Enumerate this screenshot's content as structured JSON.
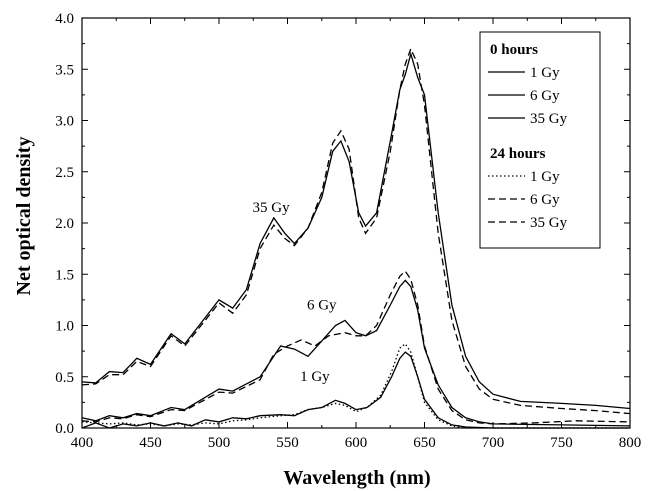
{
  "chart_data": {
    "type": "line",
    "xlabel": "Wavelength (nm)",
    "ylabel": "Net optical density",
    "xlim": [
      400,
      800
    ],
    "ylim": [
      0.0,
      4.0
    ],
    "x_ticks": [
      "400",
      "450",
      "500",
      "550",
      "600",
      "650",
      "700",
      "750",
      "800"
    ],
    "y_ticks": [
      "0.0",
      "0.5",
      "1.0",
      "1.5",
      "2.0",
      "2.5",
      "3.0",
      "3.5",
      "4.0"
    ],
    "grid": false,
    "legend_position": "top-right",
    "legend_groups": [
      {
        "title": "0 hours",
        "entries": [
          {
            "label": "1 Gy",
            "style": "solid"
          },
          {
            "label": "6 Gy",
            "style": "solid"
          },
          {
            "label": "35 Gy",
            "style": "solid"
          }
        ]
      },
      {
        "title": "24 hours",
        "entries": [
          {
            "label": "1 Gy",
            "style": "dotted"
          },
          {
            "label": "6 Gy",
            "style": "dashed"
          },
          {
            "label": "35 Gy",
            "style": "dashed"
          }
        ]
      }
    ],
    "annotations": [
      {
        "text": "35 Gy",
        "x": 538,
        "y": 2.05
      },
      {
        "text": "6 Gy",
        "x": 575,
        "y": 1.1
      },
      {
        "text": "1 Gy",
        "x": 570,
        "y": 0.4
      }
    ],
    "series": [
      {
        "name": "0 hours 35 Gy",
        "style": "solid",
        "points": [
          [
            400,
            0.45
          ],
          [
            410,
            0.44
          ],
          [
            420,
            0.55
          ],
          [
            430,
            0.54
          ],
          [
            440,
            0.68
          ],
          [
            450,
            0.62
          ],
          [
            465,
            0.92
          ],
          [
            475,
            0.82
          ],
          [
            500,
            1.25
          ],
          [
            510,
            1.17
          ],
          [
            520,
            1.35
          ],
          [
            530,
            1.8
          ],
          [
            540,
            2.05
          ],
          [
            548,
            1.9
          ],
          [
            555,
            1.8
          ],
          [
            565,
            1.95
          ],
          [
            575,
            2.25
          ],
          [
            583,
            2.7
          ],
          [
            589,
            2.8
          ],
          [
            595,
            2.6
          ],
          [
            602,
            2.1
          ],
          [
            607,
            1.97
          ],
          [
            615,
            2.1
          ],
          [
            625,
            2.8
          ],
          [
            632,
            3.3
          ],
          [
            636,
            3.45
          ],
          [
            640,
            3.65
          ],
          [
            645,
            3.42
          ],
          [
            650,
            3.25
          ],
          [
            660,
            2.1
          ],
          [
            670,
            1.2
          ],
          [
            680,
            0.7
          ],
          [
            690,
            0.45
          ],
          [
            700,
            0.33
          ],
          [
            720,
            0.26
          ],
          [
            750,
            0.24
          ],
          [
            775,
            0.22
          ],
          [
            800,
            0.19
          ]
        ]
      },
      {
        "name": "24 hours 35 Gy",
        "style": "dashed",
        "points": [
          [
            400,
            0.42
          ],
          [
            410,
            0.43
          ],
          [
            420,
            0.52
          ],
          [
            430,
            0.52
          ],
          [
            440,
            0.65
          ],
          [
            450,
            0.6
          ],
          [
            465,
            0.9
          ],
          [
            475,
            0.8
          ],
          [
            500,
            1.22
          ],
          [
            510,
            1.12
          ],
          [
            520,
            1.3
          ],
          [
            530,
            1.75
          ],
          [
            540,
            1.98
          ],
          [
            548,
            1.85
          ],
          [
            555,
            1.78
          ],
          [
            565,
            1.95
          ],
          [
            575,
            2.3
          ],
          [
            583,
            2.78
          ],
          [
            589,
            2.9
          ],
          [
            595,
            2.72
          ],
          [
            602,
            2.05
          ],
          [
            607,
            1.9
          ],
          [
            615,
            2.05
          ],
          [
            625,
            2.7
          ],
          [
            632,
            3.3
          ],
          [
            636,
            3.55
          ],
          [
            640,
            3.7
          ],
          [
            645,
            3.55
          ],
          [
            650,
            3.15
          ],
          [
            660,
            1.9
          ],
          [
            670,
            1.05
          ],
          [
            680,
            0.6
          ],
          [
            690,
            0.38
          ],
          [
            700,
            0.28
          ],
          [
            720,
            0.22
          ],
          [
            750,
            0.19
          ],
          [
            775,
            0.17
          ],
          [
            800,
            0.14
          ]
        ]
      },
      {
        "name": "0 hours 6 Gy",
        "style": "solid",
        "points": [
          [
            400,
            0.1
          ],
          [
            410,
            0.07
          ],
          [
            420,
            0.12
          ],
          [
            430,
            0.1
          ],
          [
            440,
            0.14
          ],
          [
            450,
            0.12
          ],
          [
            465,
            0.2
          ],
          [
            475,
            0.18
          ],
          [
            500,
            0.38
          ],
          [
            510,
            0.36
          ],
          [
            530,
            0.5
          ],
          [
            545,
            0.8
          ],
          [
            555,
            0.77
          ],
          [
            565,
            0.7
          ],
          [
            575,
            0.85
          ],
          [
            585,
            1.0
          ],
          [
            592,
            1.05
          ],
          [
            600,
            0.93
          ],
          [
            607,
            0.9
          ],
          [
            615,
            0.95
          ],
          [
            625,
            1.2
          ],
          [
            632,
            1.38
          ],
          [
            636,
            1.44
          ],
          [
            640,
            1.38
          ],
          [
            645,
            1.15
          ],
          [
            650,
            0.78
          ],
          [
            660,
            0.42
          ],
          [
            670,
            0.2
          ],
          [
            680,
            0.1
          ],
          [
            690,
            0.06
          ],
          [
            700,
            0.04
          ],
          [
            750,
            0.03
          ],
          [
            800,
            0.02
          ]
        ]
      },
      {
        "name": "24 hours 6 Gy",
        "style": "dashed",
        "points": [
          [
            400,
            0.07
          ],
          [
            410,
            0.06
          ],
          [
            420,
            0.1
          ],
          [
            430,
            0.09
          ],
          [
            440,
            0.13
          ],
          [
            450,
            0.11
          ],
          [
            465,
            0.18
          ],
          [
            475,
            0.17
          ],
          [
            500,
            0.35
          ],
          [
            510,
            0.34
          ],
          [
            530,
            0.47
          ],
          [
            540,
            0.72
          ],
          [
            550,
            0.8
          ],
          [
            560,
            0.86
          ],
          [
            570,
            0.8
          ],
          [
            580,
            0.9
          ],
          [
            592,
            0.93
          ],
          [
            600,
            0.9
          ],
          [
            607,
            0.9
          ],
          [
            615,
            1.0
          ],
          [
            625,
            1.3
          ],
          [
            632,
            1.48
          ],
          [
            636,
            1.53
          ],
          [
            640,
            1.45
          ],
          [
            645,
            1.2
          ],
          [
            650,
            0.8
          ],
          [
            660,
            0.38
          ],
          [
            670,
            0.17
          ],
          [
            680,
            0.08
          ],
          [
            690,
            0.05
          ],
          [
            700,
            0.04
          ],
          [
            730,
            0.05
          ],
          [
            760,
            0.07
          ],
          [
            800,
            0.06
          ]
        ]
      },
      {
        "name": "0 hours 1 Gy",
        "style": "solid",
        "points": [
          [
            400,
            0.0
          ],
          [
            410,
            0.05
          ],
          [
            420,
            0.0
          ],
          [
            430,
            0.04
          ],
          [
            440,
            0.02
          ],
          [
            450,
            0.05
          ],
          [
            460,
            0.02
          ],
          [
            470,
            0.05
          ],
          [
            480,
            0.02
          ],
          [
            490,
            0.08
          ],
          [
            500,
            0.06
          ],
          [
            510,
            0.1
          ],
          [
            520,
            0.09
          ],
          [
            530,
            0.12
          ],
          [
            545,
            0.13
          ],
          [
            555,
            0.12
          ],
          [
            565,
            0.18
          ],
          [
            575,
            0.2
          ],
          [
            585,
            0.27
          ],
          [
            592,
            0.24
          ],
          [
            600,
            0.18
          ],
          [
            608,
            0.2
          ],
          [
            618,
            0.3
          ],
          [
            626,
            0.5
          ],
          [
            632,
            0.68
          ],
          [
            636,
            0.74
          ],
          [
            640,
            0.7
          ],
          [
            645,
            0.5
          ],
          [
            650,
            0.28
          ],
          [
            660,
            0.1
          ],
          [
            670,
            0.03
          ],
          [
            680,
            0.01
          ],
          [
            700,
            0.0
          ],
          [
            750,
            0.0
          ],
          [
            800,
            0.0
          ]
        ]
      },
      {
        "name": "24 hours 1 Gy",
        "style": "dotted",
        "points": [
          [
            400,
            0.06
          ],
          [
            410,
            0.05
          ],
          [
            420,
            0.04
          ],
          [
            430,
            0.05
          ],
          [
            440,
            0.03
          ],
          [
            450,
            0.04
          ],
          [
            460,
            0.02
          ],
          [
            470,
            0.04
          ],
          [
            480,
            0.03
          ],
          [
            490,
            0.05
          ],
          [
            500,
            0.04
          ],
          [
            510,
            0.07
          ],
          [
            520,
            0.08
          ],
          [
            530,
            0.1
          ],
          [
            545,
            0.12
          ],
          [
            555,
            0.13
          ],
          [
            565,
            0.18
          ],
          [
            575,
            0.2
          ],
          [
            585,
            0.24
          ],
          [
            592,
            0.22
          ],
          [
            600,
            0.16
          ],
          [
            608,
            0.2
          ],
          [
            618,
            0.32
          ],
          [
            626,
            0.55
          ],
          [
            632,
            0.78
          ],
          [
            636,
            0.82
          ],
          [
            640,
            0.74
          ],
          [
            645,
            0.5
          ],
          [
            650,
            0.25
          ],
          [
            660,
            0.08
          ],
          [
            670,
            0.02
          ],
          [
            680,
            0.0
          ],
          [
            700,
            0.0
          ],
          [
            750,
            0.0
          ],
          [
            800,
            0.0
          ]
        ]
      }
    ]
  }
}
